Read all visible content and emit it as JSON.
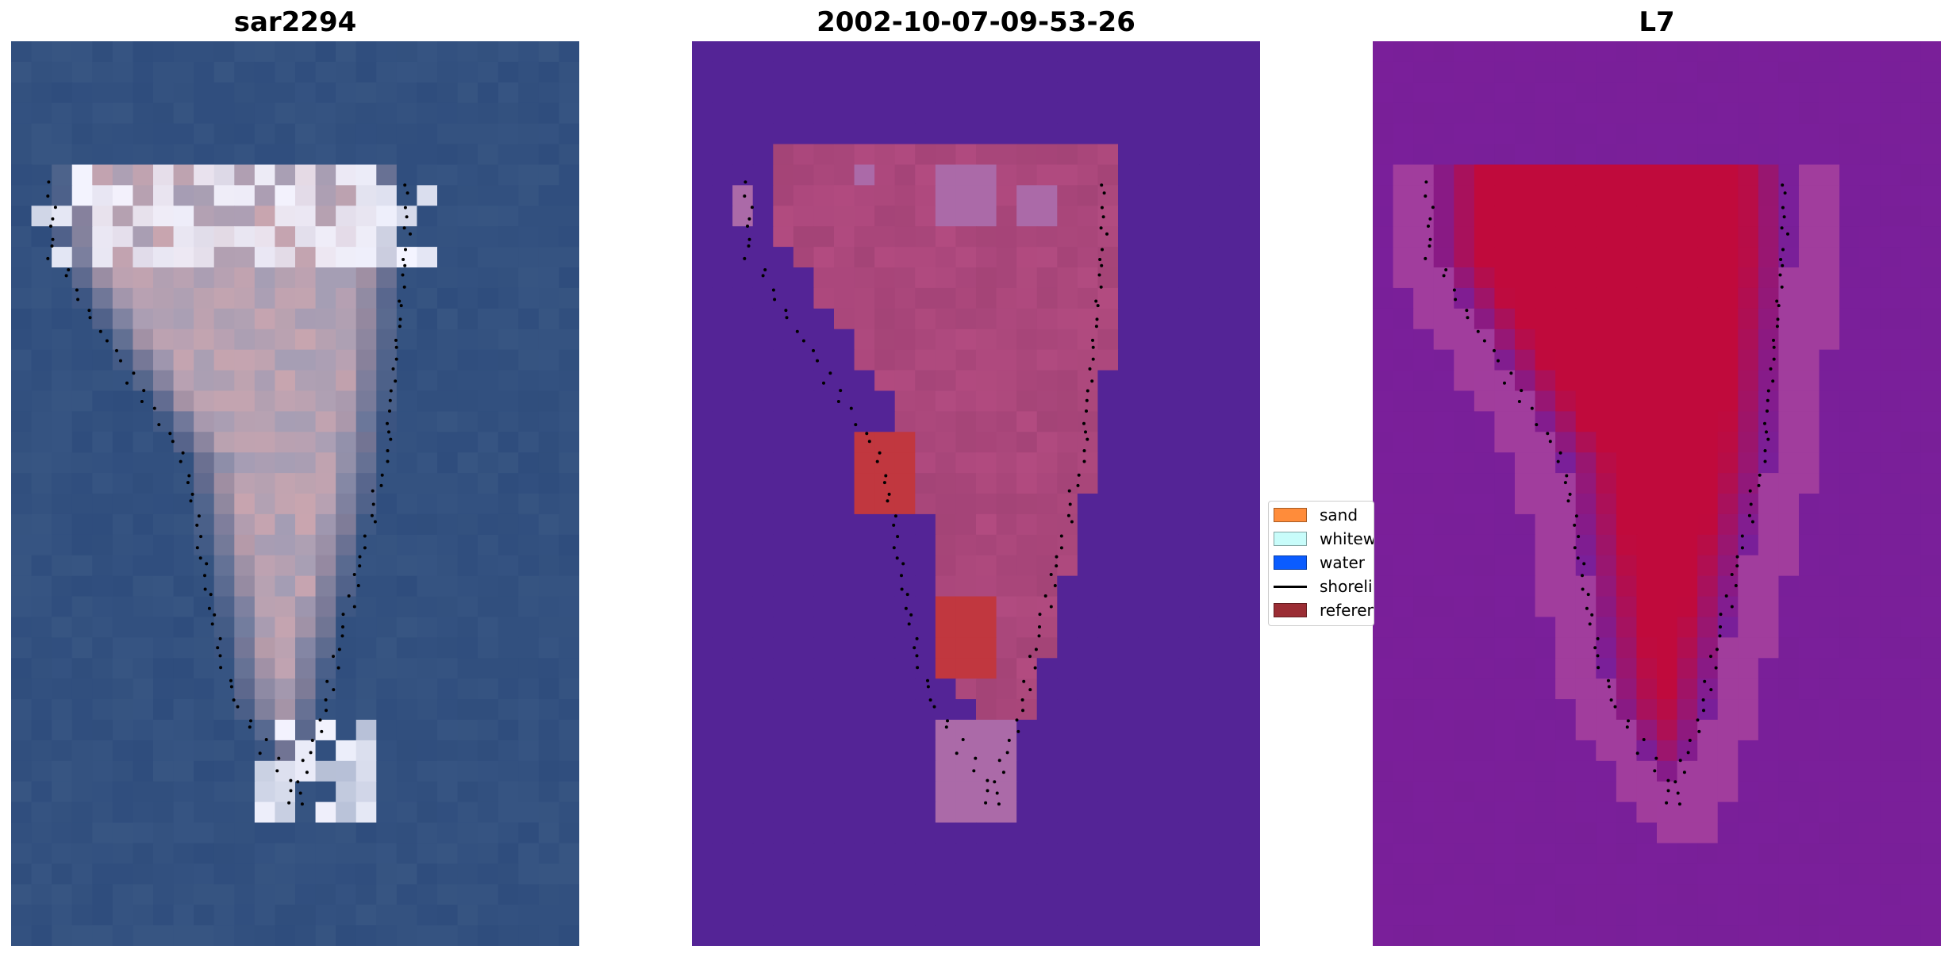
{
  "panels": [
    {
      "title": "sar2294",
      "base_color": "#2f4d7d"
    },
    {
      "title": "2002-10-07-09-53-26",
      "base_color": "#542496"
    },
    {
      "title": "L7",
      "base_color": "#7a1f9a"
    }
  ],
  "legend": {
    "items": [
      {
        "label": "sand",
        "color": "#ff8c3a",
        "kind": "patch"
      },
      {
        "label": "whitewater",
        "color": "#c8fcfa",
        "kind": "patch"
      },
      {
        "label": "water",
        "color": "#0a5cff",
        "kind": "patch"
      },
      {
        "label": "shoreline",
        "color": "#000000",
        "kind": "line"
      },
      {
        "label": "reference shoreline",
        "color": "#9b2d34",
        "kind": "patch"
      }
    ]
  },
  "colors": {
    "rgb_water": "#2f4d7d",
    "rgb_sand": "#d9aeb4",
    "rgb_whitewater": "#f4f4ff",
    "class_background": "#542496",
    "class_sand": "#b24b80",
    "class_whitewater": "#ab6aa8",
    "class_reference": "#c1373f",
    "mndwi_background": "#7a1f9a",
    "mndwi_land": "#c00a3c",
    "shoreline_dots": "#000000"
  }
}
